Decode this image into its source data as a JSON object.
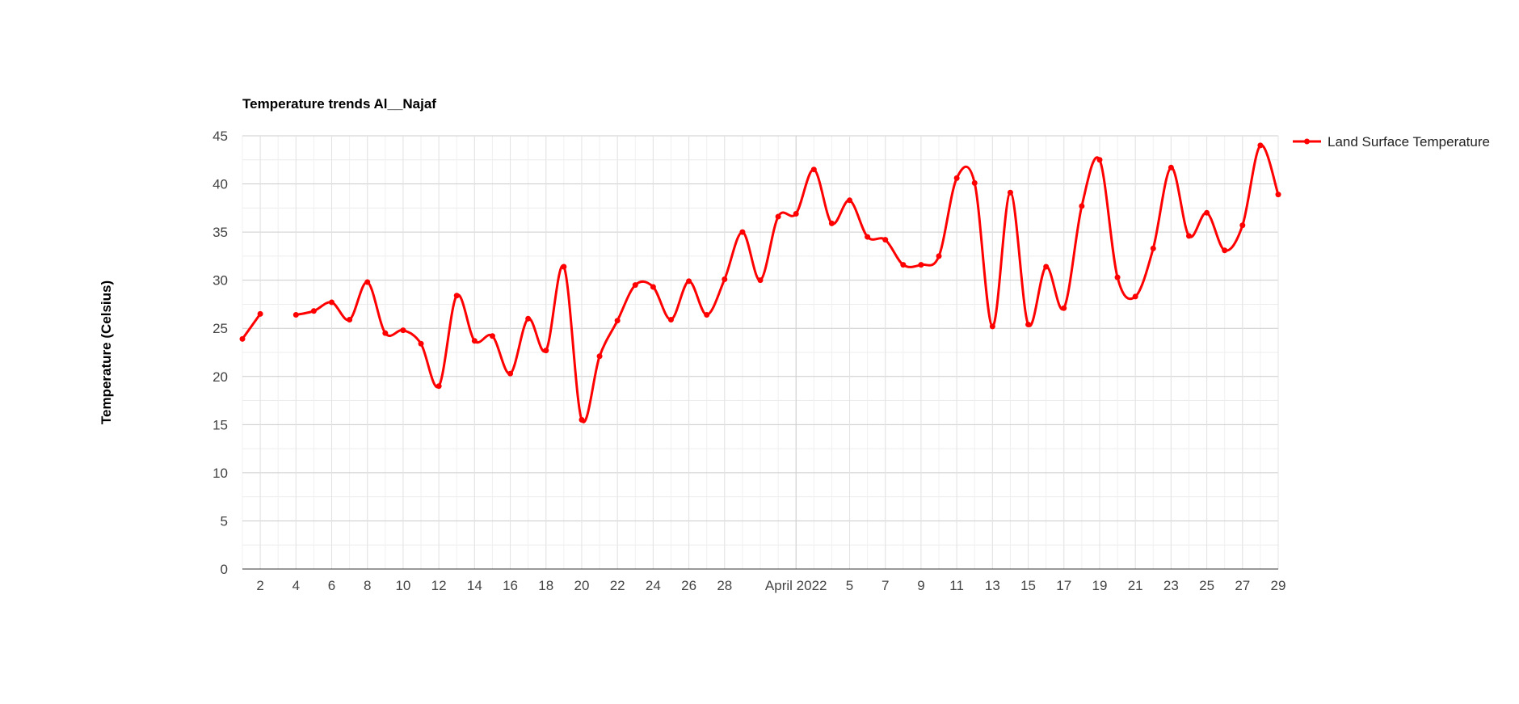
{
  "chart_data": {
    "type": "line",
    "title": "Temperature trends Al__Najaf",
    "xlabel": "",
    "ylabel": "Temperature (Celsius)",
    "ylim": [
      0,
      45
    ],
    "y_ticks": [
      0,
      5,
      10,
      15,
      20,
      25,
      30,
      35,
      40,
      45
    ],
    "x_tick_labels": [
      "2",
      "4",
      "6",
      "8",
      "10",
      "12",
      "14",
      "16",
      "18",
      "20",
      "22",
      "24",
      "26",
      "28",
      "April 2022",
      "5",
      "7",
      "9",
      "11",
      "13",
      "15",
      "17",
      "19",
      "21",
      "23",
      "25",
      "27",
      "29"
    ],
    "grid": true,
    "legend_position": "right",
    "series": [
      {
        "name": "Land Surface Temperature",
        "color": "#ff0000",
        "values": [
          23.9,
          26.5,
          null,
          26.4,
          26.8,
          27.7,
          25.9,
          29.8,
          24.5,
          24.8,
          23.4,
          19.0,
          28.4,
          23.7,
          24.2,
          20.3,
          26.0,
          22.7,
          31.4,
          15.5,
          22.1,
          25.8,
          29.5,
          29.3,
          25.9,
          29.9,
          26.4,
          30.1,
          35.0,
          30.0,
          36.6,
          36.9,
          41.5,
          35.9,
          38.3,
          34.5,
          34.2,
          31.6,
          31.6,
          32.5,
          40.6,
          40.1,
          25.2,
          39.1,
          25.4,
          31.4,
          27.1,
          37.7,
          42.5,
          30.3,
          28.3,
          33.3,
          41.7,
          34.6,
          37.0,
          33.1,
          35.7,
          44.0,
          38.9
        ]
      }
    ]
  }
}
